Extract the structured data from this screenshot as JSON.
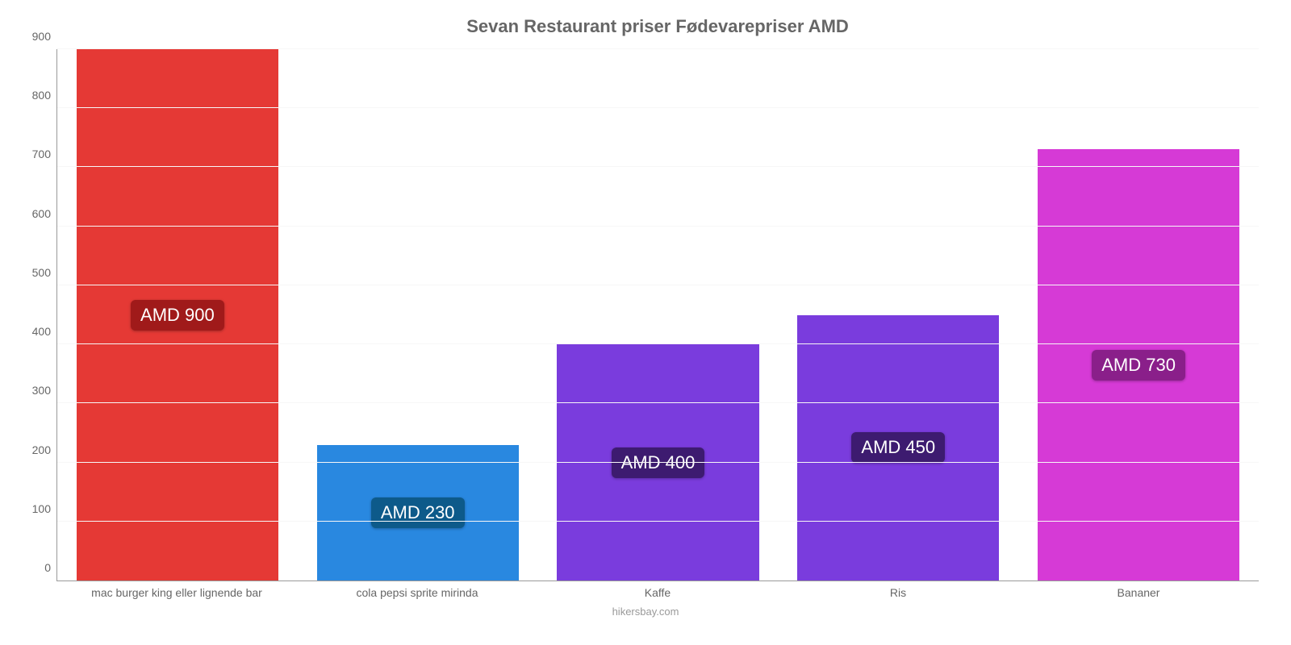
{
  "chart": {
    "type": "bar",
    "title": "Sevan Restaurant priser Fødevarepriser AMD",
    "title_fontsize": 22,
    "title_color": "#666666",
    "background_color": "#ffffff",
    "grid_color": "#f7f7f7",
    "axis_color": "#999999",
    "categories": [
      "mac burger king eller lignende bar",
      "cola pepsi sprite mirinda",
      "Kaffe",
      "Ris",
      "Bananer"
    ],
    "values": [
      900,
      230,
      400,
      450,
      730
    ],
    "value_labels": [
      "AMD 900",
      "AMD 230",
      "AMD 400",
      "AMD 450",
      "AMD 730"
    ],
    "bar_colors": [
      "#e53935",
      "#2988e0",
      "#7a3cdd",
      "#7a3cdd",
      "#d63ad6"
    ],
    "label_bg_colors": [
      "#a01a1a",
      "#0d5a8a",
      "#3d1b70",
      "#3d1b70",
      "#8a1f8a"
    ],
    "label_fontsize": 22,
    "tick_fontsize": 14,
    "xlabel_fontsize": 14,
    "ylim": [
      0,
      900
    ],
    "ytick_step": 100,
    "bar_width_pct": 84,
    "footer": "hikersbay.com",
    "footer_fontsize": 13,
    "footer_color": "#999999"
  }
}
